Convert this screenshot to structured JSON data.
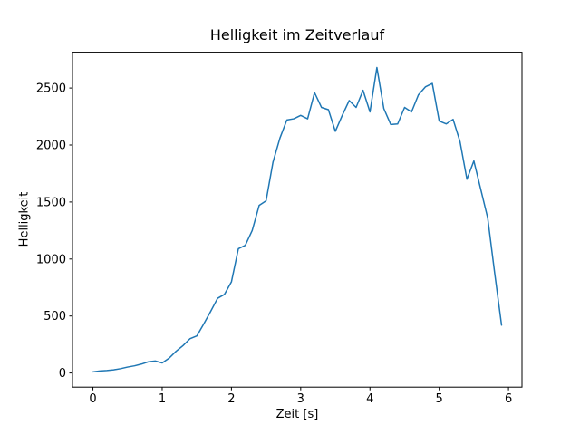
{
  "chart_data": {
    "type": "line",
    "title": "Helligkeit im Zeitverlauf",
    "xlabel": "Zeit [s]",
    "ylabel": "Helligkeit",
    "x": [
      0.0,
      0.1,
      0.2,
      0.3,
      0.4,
      0.5,
      0.6,
      0.7,
      0.8,
      0.9,
      1.0,
      1.1,
      1.2,
      1.3,
      1.4,
      1.5,
      1.6,
      1.7,
      1.8,
      1.9,
      2.0,
      2.1,
      2.2,
      2.3,
      2.4,
      2.5,
      2.6,
      2.7,
      2.8,
      2.9,
      3.0,
      3.1,
      3.2,
      3.3,
      3.4,
      3.5,
      3.6,
      3.7,
      3.8,
      3.9,
      4.0,
      4.1,
      4.2,
      4.3,
      4.4,
      4.5,
      4.6,
      4.7,
      4.8,
      4.9,
      5.0,
      5.1,
      5.2,
      5.3,
      5.4,
      5.5,
      5.6,
      5.7,
      5.8,
      5.9
    ],
    "y": [
      10,
      18,
      22,
      28,
      38,
      52,
      63,
      78,
      98,
      105,
      88,
      130,
      190,
      240,
      300,
      325,
      430,
      540,
      655,
      690,
      800,
      1090,
      1120,
      1250,
      1470,
      1510,
      1850,
      2060,
      2220,
      2230,
      2260,
      2230,
      2460,
      2330,
      2310,
      2120,
      2260,
      2390,
      2330,
      2480,
      2290,
      2680,
      2320,
      2180,
      2185,
      2330,
      2290,
      2440,
      2510,
      2540,
      2210,
      2185,
      2225,
      2030,
      1700,
      1860,
      1610,
      1360,
      880,
      420
    ],
    "xticks": [
      0,
      1,
      2,
      3,
      4,
      5,
      6
    ],
    "yticks": [
      0,
      500,
      1000,
      1500,
      2000,
      2500
    ],
    "xlim": [
      -0.295,
      6.195
    ],
    "ylim": [
      -124,
      2814
    ],
    "grid": false,
    "legend": null,
    "line_color": "#1f77b4",
    "line_width": 1.5,
    "axis_color": "#000000",
    "tick_label_color": "#000000",
    "background": "#ffffff"
  }
}
